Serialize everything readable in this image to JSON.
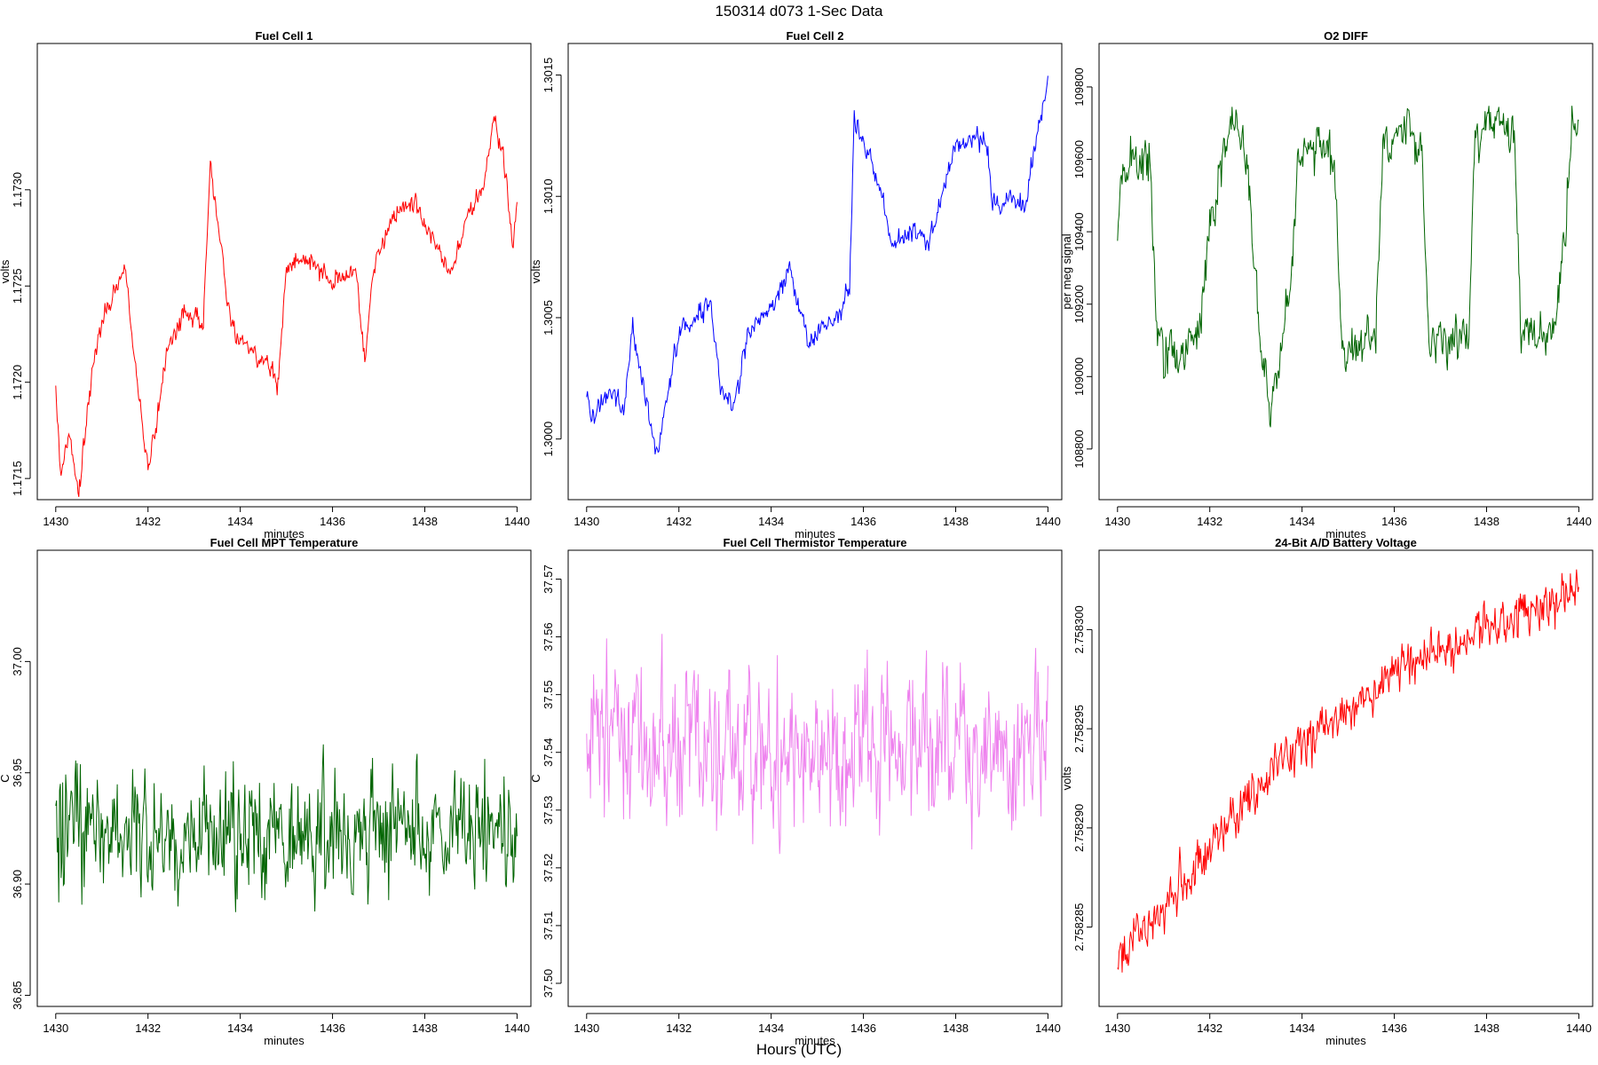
{
  "figure": {
    "title": "150314   d073   1-Sec Data",
    "xlabel": "Hours (UTC)"
  },
  "chart_data": [
    {
      "type": "line",
      "title": "Fuel Cell 1",
      "xlabel": "minutes",
      "ylabel": "volts",
      "color": "#ff0000",
      "xlim": [
        1429.6,
        1440.3
      ],
      "ylim": [
        1.17139,
        1.17376
      ],
      "xticks": [
        1430,
        1432,
        1434,
        1436,
        1438,
        1440
      ],
      "yticks": [
        1.1715,
        1.172,
        1.1725,
        1.173
      ],
      "ytick_labels": [
        "1.1715",
        "1.1720",
        "1.1725",
        "1.1730"
      ],
      "key_points": [
        [
          1430.0,
          1.17198
        ],
        [
          1430.1,
          1.17152
        ],
        [
          1430.3,
          1.17175
        ],
        [
          1430.5,
          1.17142
        ],
        [
          1430.8,
          1.17205
        ],
        [
          1431.0,
          1.17232
        ],
        [
          1431.5,
          1.17258
        ],
        [
          1431.7,
          1.17218
        ],
        [
          1432.0,
          1.17152
        ],
        [
          1432.4,
          1.17212
        ],
        [
          1432.8,
          1.17238
        ],
        [
          1433.2,
          1.17228
        ],
        [
          1433.35,
          1.17315
        ],
        [
          1433.6,
          1.17268
        ],
        [
          1433.8,
          1.17228
        ],
        [
          1434.2,
          1.17216
        ],
        [
          1434.7,
          1.17208
        ],
        [
          1434.8,
          1.17193
        ],
        [
          1435.0,
          1.17262
        ],
        [
          1435.5,
          1.17262
        ],
        [
          1436.0,
          1.17252
        ],
        [
          1436.5,
          1.17258
        ],
        [
          1436.7,
          1.17212
        ],
        [
          1436.9,
          1.17262
        ],
        [
          1437.4,
          1.17288
        ],
        [
          1437.8,
          1.17292
        ],
        [
          1438.3,
          1.17268
        ],
        [
          1438.6,
          1.17258
        ],
        [
          1438.9,
          1.17285
        ],
        [
          1439.3,
          1.17305
        ],
        [
          1439.5,
          1.17338
        ],
        [
          1439.7,
          1.17318
        ],
        [
          1439.9,
          1.1727
        ],
        [
          1440.0,
          1.17292
        ]
      ],
      "noise": 3.5e-05
    },
    {
      "type": "line",
      "title": "Fuel Cell 2",
      "xlabel": "minutes",
      "ylabel": "volts",
      "color": "#0000ff",
      "xlim": [
        1429.6,
        1440.3
      ],
      "ylim": [
        1.29975,
        1.30163
      ],
      "xticks": [
        1430,
        1432,
        1434,
        1436,
        1438,
        1440
      ],
      "yticks": [
        1.3,
        1.3005,
        1.301,
        1.3015
      ],
      "ytick_labels": [
        "1.3000",
        "1.3005",
        "1.3010",
        "1.3015"
      ],
      "key_points": [
        [
          1430.0,
          1.30018
        ],
        [
          1430.1,
          1.30008
        ],
        [
          1430.5,
          1.30022
        ],
        [
          1430.8,
          1.3001
        ],
        [
          1431.0,
          1.30045
        ],
        [
          1431.5,
          1.29995
        ],
        [
          1431.6,
          1.3
        ],
        [
          1432.0,
          1.30045
        ],
        [
          1432.4,
          1.3005
        ],
        [
          1432.7,
          1.30055
        ],
        [
          1432.9,
          1.30022
        ],
        [
          1433.2,
          1.30012
        ],
        [
          1433.5,
          1.30045
        ],
        [
          1434.0,
          1.30055
        ],
        [
          1434.4,
          1.3007
        ],
        [
          1434.8,
          1.3004
        ],
        [
          1435.2,
          1.30048
        ],
        [
          1435.5,
          1.30052
        ],
        [
          1435.7,
          1.30062
        ],
        [
          1435.8,
          1.3013
        ],
        [
          1436.2,
          1.30112
        ],
        [
          1436.4,
          1.301
        ],
        [
          1436.6,
          1.3008
        ],
        [
          1437.0,
          1.30085
        ],
        [
          1437.4,
          1.3008
        ],
        [
          1437.7,
          1.301
        ],
        [
          1438.0,
          1.3012
        ],
        [
          1438.4,
          1.30125
        ],
        [
          1438.7,
          1.3012
        ],
        [
          1438.8,
          1.30095
        ],
        [
          1439.2,
          1.301
        ],
        [
          1439.5,
          1.30095
        ],
        [
          1439.7,
          1.3012
        ],
        [
          1440.0,
          1.30148
        ]
      ],
      "noise": 3e-05
    },
    {
      "type": "line",
      "title": "O2 DIFF",
      "xlabel": "minutes",
      "ylabel": "per meg signal",
      "color": "#006400",
      "xlim": [
        1429.6,
        1440.3
      ],
      "ylim": [
        108660,
        109920
      ],
      "xticks": [
        1430,
        1432,
        1434,
        1436,
        1438,
        1440
      ],
      "yticks": [
        108800,
        109000,
        109200,
        109400,
        109600,
        109800
      ],
      "ytick_labels": [
        "108800",
        "109000",
        "109200",
        "109400",
        "109600",
        "109800"
      ],
      "key_points": [
        [
          1430.0,
          109400
        ],
        [
          1430.1,
          109580
        ],
        [
          1430.7,
          109600
        ],
        [
          1430.85,
          109150
        ],
        [
          1431.0,
          109050
        ],
        [
          1431.5,
          109080
        ],
        [
          1431.8,
          109150
        ],
        [
          1432.0,
          109400
        ],
        [
          1432.3,
          109620
        ],
        [
          1432.5,
          109700
        ],
        [
          1432.8,
          109620
        ],
        [
          1432.95,
          109300
        ],
        [
          1433.1,
          109100
        ],
        [
          1433.3,
          108900
        ],
        [
          1433.6,
          109100
        ],
        [
          1433.8,
          109300
        ],
        [
          1433.9,
          109620
        ],
        [
          1434.4,
          109650
        ],
        [
          1434.7,
          109620
        ],
        [
          1434.85,
          109100
        ],
        [
          1435.2,
          109080
        ],
        [
          1435.6,
          109100
        ],
        [
          1435.75,
          109620
        ],
        [
          1436.2,
          109680
        ],
        [
          1436.6,
          109620
        ],
        [
          1436.75,
          109100
        ],
        [
          1437.2,
          109120
        ],
        [
          1437.6,
          109100
        ],
        [
          1437.75,
          109650
        ],
        [
          1438.2,
          109700
        ],
        [
          1438.6,
          109660
        ],
        [
          1438.75,
          109150
        ],
        [
          1439.2,
          109120
        ],
        [
          1439.5,
          109150
        ],
        [
          1439.7,
          109400
        ],
        [
          1439.85,
          109680
        ],
        [
          1440.0,
          109650
        ]
      ],
      "noise": 45
    },
    {
      "type": "line",
      "title": "Fuel Cell MPT Temperature",
      "xlabel": "minutes",
      "ylabel": "C",
      "color": "#006400",
      "xlim": [
        1429.6,
        1440.3
      ],
      "ylim": [
        36.845,
        37.05
      ],
      "xticks": [
        1430,
        1432,
        1434,
        1436,
        1438,
        1440
      ],
      "yticks": [
        36.85,
        36.9,
        36.95,
        37.0
      ],
      "ytick_labels": [
        "36.85",
        "36.90",
        "36.95",
        "37.00"
      ],
      "key_points": [
        [
          1430.0,
          36.925
        ],
        [
          1432.0,
          36.92
        ],
        [
          1434.0,
          36.925
        ],
        [
          1436.0,
          36.92
        ],
        [
          1438.0,
          36.925
        ],
        [
          1440.0,
          36.925
        ]
      ],
      "noise": 0.018
    },
    {
      "type": "line",
      "title": "Fuel Cell Thermistor Temperature",
      "xlabel": "minutes",
      "ylabel": "C",
      "color": "#ee82ee",
      "xlim": [
        1429.6,
        1440.3
      ],
      "ylim": [
        37.496,
        37.575
      ],
      "xticks": [
        1430,
        1432,
        1434,
        1436,
        1438,
        1440
      ],
      "yticks": [
        37.5,
        37.51,
        37.52,
        37.53,
        37.54,
        37.55,
        37.56,
        37.57
      ],
      "ytick_labels": [
        "37.50",
        "37.51",
        "37.52",
        "37.53",
        "37.54",
        "37.55",
        "37.56",
        "37.57"
      ],
      "key_points": [
        [
          1430.0,
          37.541
        ],
        [
          1435.0,
          37.541
        ],
        [
          1440.0,
          37.541
        ]
      ],
      "noise": 0.009
    },
    {
      "type": "line",
      "title": "24-Bit A/D Battery Voltage",
      "xlabel": "minutes",
      "ylabel": "volts",
      "color": "#ff0000",
      "xlim": [
        1429.6,
        1440.3
      ],
      "ylim": [
        2.758281,
        2.758304
      ],
      "xticks": [
        1430,
        1432,
        1434,
        1436,
        1438,
        1440
      ],
      "yticks": [
        2.758285,
        2.75829,
        2.758295,
        2.7583
      ],
      "ytick_labels": [
        "2.758285",
        "2.758290",
        "2.758295",
        "2.758300"
      ],
      "key_points": [
        [
          1430.0,
          2.758283
        ],
        [
          1431.0,
          2.758286
        ],
        [
          1432.0,
          2.758289
        ],
        [
          1433.0,
          2.758292
        ],
        [
          1434.0,
          2.758294
        ],
        [
          1435.0,
          2.758296
        ],
        [
          1436.0,
          2.758298
        ],
        [
          1437.0,
          2.758299
        ],
        [
          1438.0,
          2.7583
        ],
        [
          1439.0,
          2.758301
        ],
        [
          1440.0,
          2.758302
        ]
      ],
      "noise": 8e-07
    }
  ]
}
